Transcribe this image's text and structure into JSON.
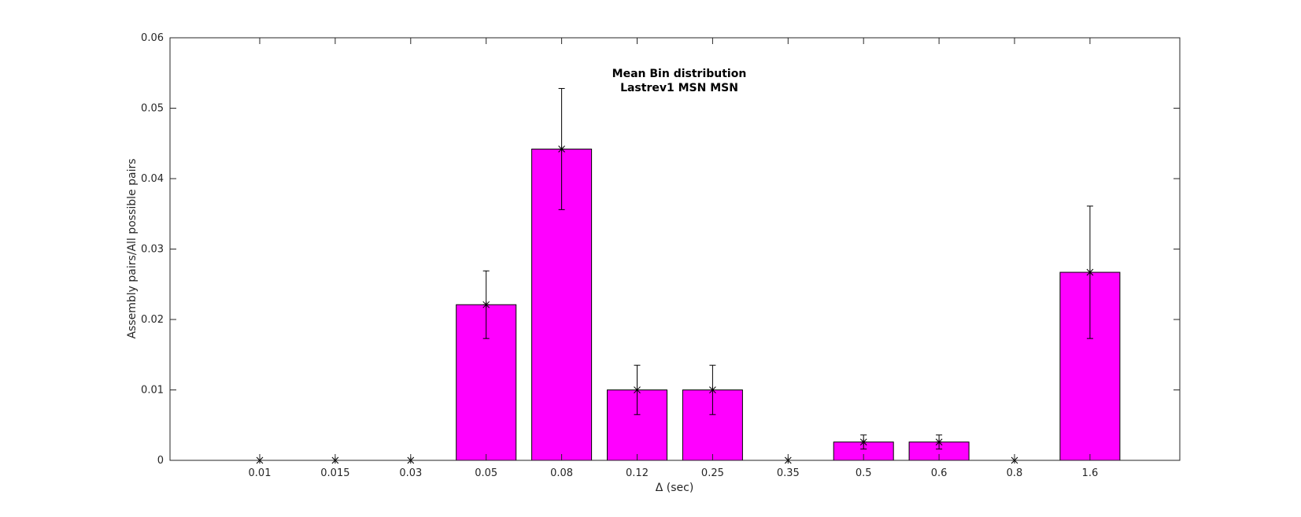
{
  "chart_data": {
    "type": "bar",
    "title": [
      "Mean Bin distribution",
      "Lastrev1 MSN MSN"
    ],
    "xlabel": "Δ (sec)",
    "ylabel": "Assembly pairs/All possible pairs",
    "categories": [
      "0.01",
      "0.015",
      "0.03",
      "0.05",
      "0.08",
      "0.12",
      "0.25",
      "0.35",
      "0.5",
      "0.6",
      "0.8",
      "1.6"
    ],
    "values": [
      0,
      0,
      0,
      0.0221,
      0.0442,
      0.01,
      0.01,
      0,
      0.0026,
      0.0026,
      0,
      0.0267
    ],
    "error": [
      0,
      0,
      0,
      0.0048,
      0.0086,
      0.0035,
      0.0035,
      0,
      0.001,
      0.001,
      0,
      0.0094
    ],
    "ylim": [
      0,
      0.06
    ],
    "yticks": [
      "0",
      "0.01",
      "0.02",
      "0.03",
      "0.04",
      "0.05",
      "0.06"
    ],
    "bar_color": "#ff00ff",
    "grid": false,
    "legend": "none"
  }
}
